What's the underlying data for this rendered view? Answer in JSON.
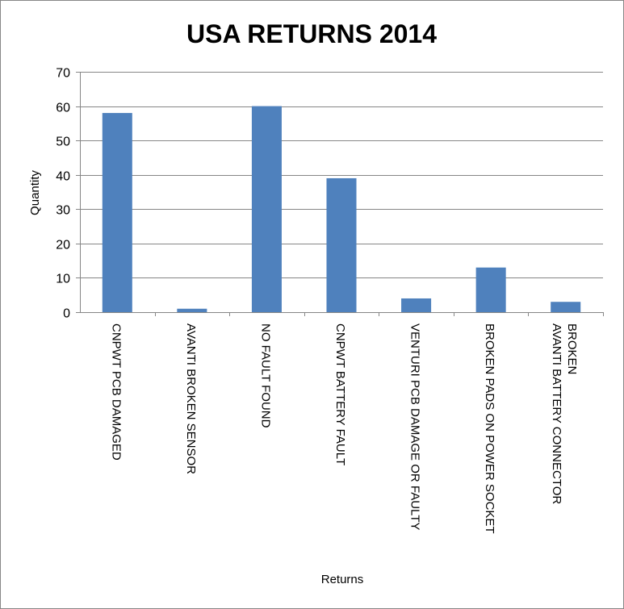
{
  "chart_data": {
    "type": "bar",
    "title": "USA RETURNS 2014",
    "xlabel": "Returns",
    "ylabel": "Quantity",
    "ylim": [
      0,
      70
    ],
    "yticks": [
      0,
      10,
      20,
      30,
      40,
      50,
      60,
      70
    ],
    "grid": true,
    "legend": "none",
    "bar_color": "#4F81BD",
    "categories": [
      [
        "CNPWT PCB DAMAGED"
      ],
      [
        "AVANTI BROKEN SENSOR"
      ],
      [
        "NO FAULT FOUND"
      ],
      [
        "CNPWT BATTERY FAULT"
      ],
      [
        "VENTURI PCB DAMAGE OR FAULTY"
      ],
      [
        "BROKEN PADS ON POWER SOCKET"
      ],
      [
        "AVANTI BATTERY CONNECTOR",
        "BROKEN"
      ]
    ],
    "values": [
      58,
      1,
      60,
      39,
      4,
      13,
      3
    ]
  }
}
